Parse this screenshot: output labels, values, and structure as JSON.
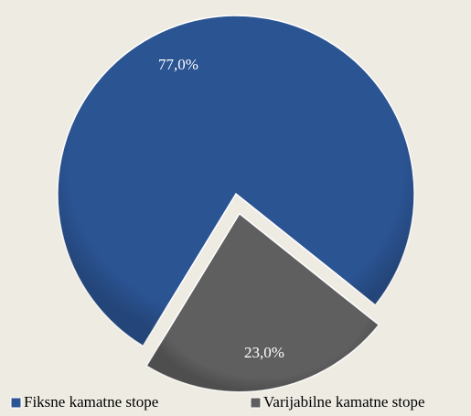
{
  "chart_data": {
    "type": "pie",
    "categories": [
      "Fiksne kamatne stope",
      "Varijabilne kamatne stope"
    ],
    "values": [
      77,
      23
    ],
    "value_labels": [
      "77,0%",
      "23,0%"
    ],
    "colors": [
      "#2b5493",
      "#5f5f5f"
    ],
    "legend": "bottom"
  }
}
